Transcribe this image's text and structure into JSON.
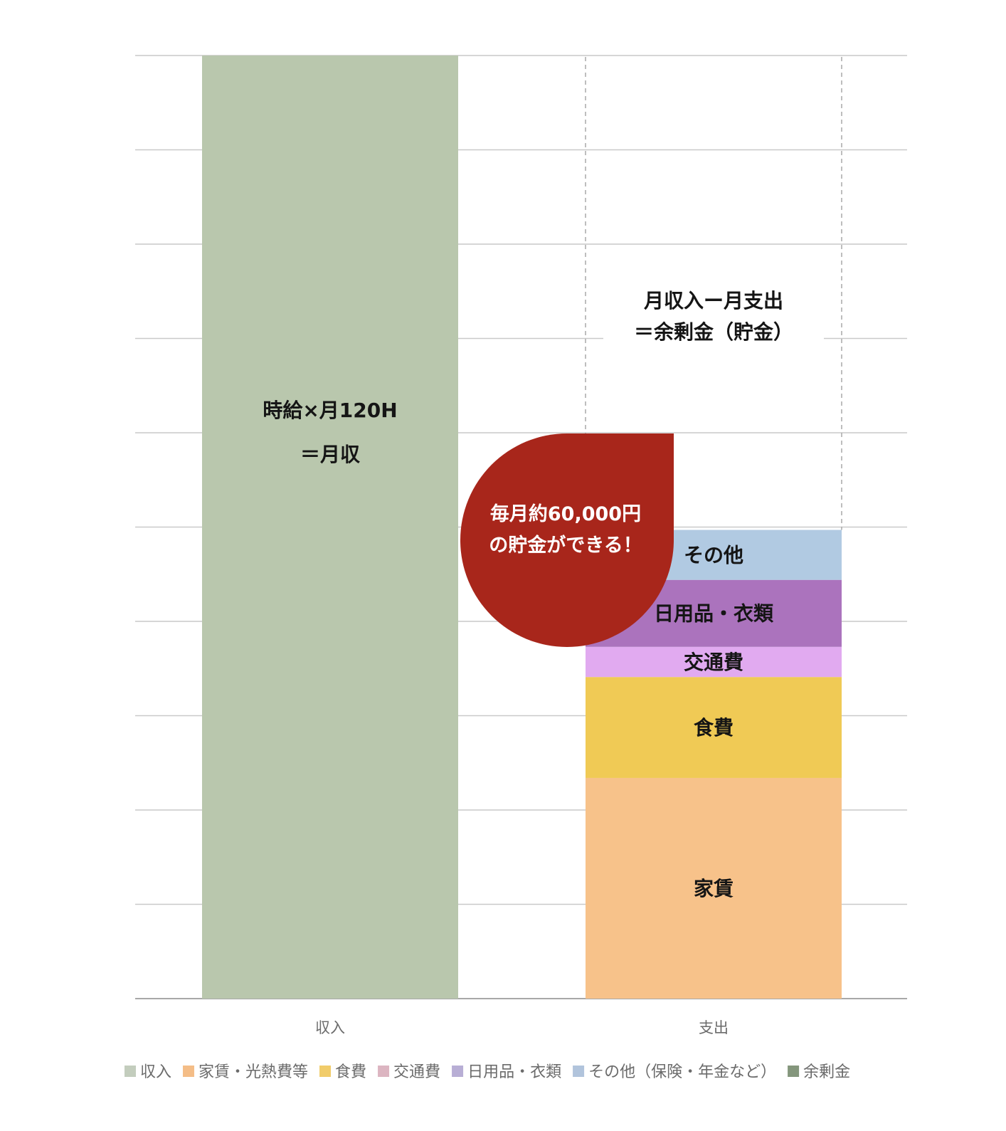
{
  "chart_data": {
    "type": "bar",
    "stacked": true,
    "categories": [
      "収入",
      "支出"
    ],
    "ylim": [
      0,
      10
    ],
    "grid": true,
    "legend_position": "bottom",
    "income": {
      "value": 10,
      "label_lines": [
        "時給×月120H",
        "＝月収"
      ],
      "color": "#b9c7ad"
    },
    "expenses": [
      {
        "name": "家賃",
        "value": 2.34,
        "color": "#f7c28a"
      },
      {
        "name": "食費",
        "value": 1.07,
        "color": "#f0ca55"
      },
      {
        "name": "交通費",
        "value": 0.32,
        "color": "#e1aaf0"
      },
      {
        "name": "日用品・衣類",
        "value": 0.71,
        "color": "#ab73bd"
      },
      {
        "name": "その他",
        "value": 0.53,
        "color": "#b1cae2"
      }
    ],
    "surplus_note": [
      "月収入ー月支出",
      "＝余剰金（貯金）"
    ],
    "bubble": {
      "lines": [
        "毎月約60,000円",
        "の貯金ができる！"
      ],
      "color": "#a8261b"
    },
    "legend": [
      {
        "label": "収入",
        "color": "#c3cdbd"
      },
      {
        "label": "家賃・光熱費等",
        "color": "#f4bd87"
      },
      {
        "label": "食費",
        "color": "#f1cc6a"
      },
      {
        "label": "交通費",
        "color": "#dcb5c1"
      },
      {
        "label": "日用品・衣類",
        "color": "#b8aed5"
      },
      {
        "label": "その他（保険・年金など）",
        "color": "#b1c4dc"
      },
      {
        "label": "余剰金",
        "color": "#84967c"
      }
    ]
  }
}
